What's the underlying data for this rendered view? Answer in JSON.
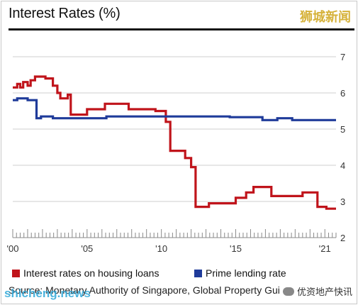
{
  "title": "Interest Rates (%)",
  "watermarks": {
    "top_right": "狮城新闻",
    "bottom_left": "shicheng.news",
    "bottom_right": "优资地产快讯"
  },
  "source": "Source: Monetary Authority of Singapore, Global Property Guide",
  "colors": {
    "housing": "#c0141b",
    "prime": "#1f3b9a",
    "grid": "#cfcfcf",
    "axis": "#8a8a8a"
  },
  "chart_data": {
    "type": "line",
    "title": "Interest Rates (%)",
    "xlabel": "",
    "ylabel": "",
    "xlim": [
      2000,
      2021.75
    ],
    "ylim": [
      2,
      7
    ],
    "x_tick_labels": [
      {
        "x": 2000,
        "label": "'00"
      },
      {
        "x": 2005,
        "label": "'05"
      },
      {
        "x": 2010,
        "label": "'10"
      },
      {
        "x": 2015,
        "label": "'15"
      },
      {
        "x": 2021,
        "label": "'21"
      }
    ],
    "y_ticks": [
      2,
      3,
      4,
      5,
      6,
      7
    ],
    "grid": "horizontal",
    "legend_position": "bottom",
    "series": [
      {
        "name": "Interest rates on housing loans",
        "color": "#c0141b",
        "points": [
          [
            2000.0,
            6.15
          ],
          [
            2000.3,
            6.15
          ],
          [
            2000.3,
            6.25
          ],
          [
            2000.5,
            6.25
          ],
          [
            2000.5,
            6.15
          ],
          [
            2000.7,
            6.15
          ],
          [
            2000.7,
            6.3
          ],
          [
            2001.0,
            6.3
          ],
          [
            2001.0,
            6.2
          ],
          [
            2001.2,
            6.2
          ],
          [
            2001.2,
            6.35
          ],
          [
            2001.5,
            6.35
          ],
          [
            2001.5,
            6.45
          ],
          [
            2002.2,
            6.45
          ],
          [
            2002.2,
            6.4
          ],
          [
            2002.7,
            6.4
          ],
          [
            2002.7,
            6.2
          ],
          [
            2003.0,
            6.2
          ],
          [
            2003.0,
            6.0
          ],
          [
            2003.2,
            6.0
          ],
          [
            2003.2,
            5.85
          ],
          [
            2003.7,
            5.85
          ],
          [
            2003.7,
            5.95
          ],
          [
            2003.9,
            5.95
          ],
          [
            2003.9,
            5.4
          ],
          [
            2005.0,
            5.4
          ],
          [
            2005.0,
            5.55
          ],
          [
            2006.2,
            5.55
          ],
          [
            2006.2,
            5.7
          ],
          [
            2007.8,
            5.7
          ],
          [
            2007.8,
            5.55
          ],
          [
            2009.6,
            5.55
          ],
          [
            2009.6,
            5.5
          ],
          [
            2010.3,
            5.5
          ],
          [
            2010.3,
            5.2
          ],
          [
            2010.6,
            5.2
          ],
          [
            2010.6,
            4.4
          ],
          [
            2011.6,
            4.4
          ],
          [
            2011.6,
            4.2
          ],
          [
            2012.0,
            4.2
          ],
          [
            2012.0,
            3.95
          ],
          [
            2012.3,
            3.95
          ],
          [
            2012.3,
            2.85
          ],
          [
            2013.2,
            2.85
          ],
          [
            2013.2,
            2.95
          ],
          [
            2015.0,
            2.95
          ],
          [
            2015.0,
            3.1
          ],
          [
            2015.7,
            3.1
          ],
          [
            2015.7,
            3.25
          ],
          [
            2016.2,
            3.25
          ],
          [
            2016.2,
            3.4
          ],
          [
            2017.4,
            3.4
          ],
          [
            2017.4,
            3.15
          ],
          [
            2019.5,
            3.15
          ],
          [
            2019.5,
            3.25
          ],
          [
            2020.5,
            3.25
          ],
          [
            2020.5,
            2.85
          ],
          [
            2021.1,
            2.85
          ],
          [
            2021.1,
            2.8
          ],
          [
            2021.75,
            2.8
          ]
        ]
      },
      {
        "name": "Prime lending rate",
        "color": "#1f3b9a",
        "points": [
          [
            2000.0,
            5.8
          ],
          [
            2000.3,
            5.8
          ],
          [
            2000.3,
            5.85
          ],
          [
            2001.0,
            5.85
          ],
          [
            2001.0,
            5.8
          ],
          [
            2001.6,
            5.8
          ],
          [
            2001.6,
            5.3
          ],
          [
            2001.9,
            5.3
          ],
          [
            2001.9,
            5.35
          ],
          [
            2002.7,
            5.35
          ],
          [
            2002.7,
            5.3
          ],
          [
            2006.3,
            5.3
          ],
          [
            2006.3,
            5.35
          ],
          [
            2014.6,
            5.35
          ],
          [
            2014.6,
            5.33
          ],
          [
            2016.8,
            5.33
          ],
          [
            2016.8,
            5.25
          ],
          [
            2017.8,
            5.25
          ],
          [
            2017.8,
            5.3
          ],
          [
            2018.8,
            5.3
          ],
          [
            2018.8,
            5.25
          ],
          [
            2021.75,
            5.25
          ]
        ]
      }
    ]
  }
}
